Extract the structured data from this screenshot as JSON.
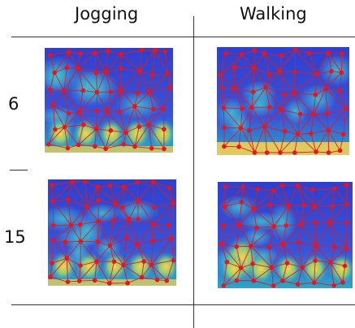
{
  "columns": [
    "Jogging",
    "Walking"
  ],
  "rows": [
    "6",
    "15"
  ],
  "colors": {
    "heat_low": "#2f3fd0",
    "heat_mid": "#2aa8c8",
    "heat_high": "#ffd24a",
    "node": "#e8141e",
    "edge": "#e21a1a",
    "rule": "#333333"
  },
  "panels": [
    {
      "name": "jogging-6",
      "hotspot": "bottom-spots",
      "grid": {
        "cols": 9,
        "rows": 6
      }
    },
    {
      "name": "walking-6",
      "hotspot": "bottom-band",
      "grid": {
        "cols": 9,
        "rows": 6
      }
    },
    {
      "name": "jogging-15",
      "hotspot": "bottom-spots",
      "grid": {
        "cols": 9,
        "rows": 6
      }
    },
    {
      "name": "walking-15",
      "hotspot": "bottom-left",
      "grid": {
        "cols": 9,
        "rows": 6
      }
    }
  ]
}
